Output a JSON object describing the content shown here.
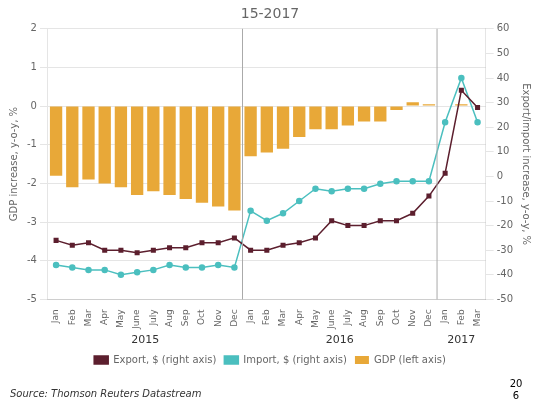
{
  "chart_data": {
    "type": "bar",
    "title": "15-2017",
    "categories": [
      "Jan",
      "Feb",
      "Mar",
      "Apr",
      "May",
      "June",
      "July",
      "Aug",
      "Sep",
      "Oct",
      "Nov",
      "Dec",
      "Jan",
      "Feb",
      "Mar",
      "Apr",
      "May",
      "June",
      "July",
      "Aug",
      "Sep",
      "Oct",
      "Nov",
      "Dec",
      "Jan",
      "Feb",
      "Mar"
    ],
    "series": [
      {
        "name": "GDP (left axis)",
        "type": "bar",
        "axis": "y",
        "color": "#E8A838",
        "values": [
          -1.8,
          -2.1,
          -1.9,
          -2.0,
          -2.1,
          -2.3,
          -2.2,
          -2.3,
          -2.4,
          -2.5,
          -2.6,
          -2.7,
          -1.3,
          -1.2,
          -1.1,
          -0.8,
          -0.6,
          -0.6,
          -0.5,
          -0.4,
          -0.4,
          -0.1,
          0.1,
          0.05,
          0.0,
          0.05,
          null
        ]
      },
      {
        "name": "Export, $ (right axis)",
        "type": "line",
        "axis": "y2",
        "color": "#5C1F2E",
        "marker": "square",
        "values": [
          -26,
          -28,
          -27,
          -30,
          -30,
          -31,
          -30,
          -29,
          -29,
          -27,
          -27,
          -25,
          -30,
          -30,
          -28,
          -27,
          -25,
          -18,
          -20,
          -20,
          -18,
          -18,
          -15,
          -8,
          1.3,
          35,
          28
        ]
      },
      {
        "name": "Import, $ (right axis)",
        "type": "line",
        "axis": "y2",
        "color": "#4BBFBF",
        "marker": "circle",
        "values": [
          -36,
          -37,
          -38,
          -38,
          -40,
          -39,
          -38,
          -36,
          -37,
          -37,
          -36,
          -37,
          -14,
          -18,
          -15,
          -10,
          -5,
          -6,
          -5,
          -5,
          -3,
          -2,
          -2,
          -2,
          22,
          40,
          22
        ]
      }
    ],
    "ylabel": "GDP increase, y-o-y, %",
    "y2label": "Export/import increase, y-o-y, %",
    "ylim": [
      -5,
      2
    ],
    "yticks": [
      -5,
      -4,
      -3,
      -2,
      -1,
      0,
      1,
      2
    ],
    "y2lim": [
      -50,
      60
    ],
    "y2ticks": [
      -50,
      -40,
      -30,
      -20,
      -10,
      0,
      10,
      20,
      30,
      40,
      50,
      60
    ],
    "grid": true,
    "legend": "bottom",
    "annotations": [
      "2015",
      "2016",
      "2017"
    ],
    "source": "Source: Thomson Reuters Datastream",
    "page_number": "20\n6"
  }
}
